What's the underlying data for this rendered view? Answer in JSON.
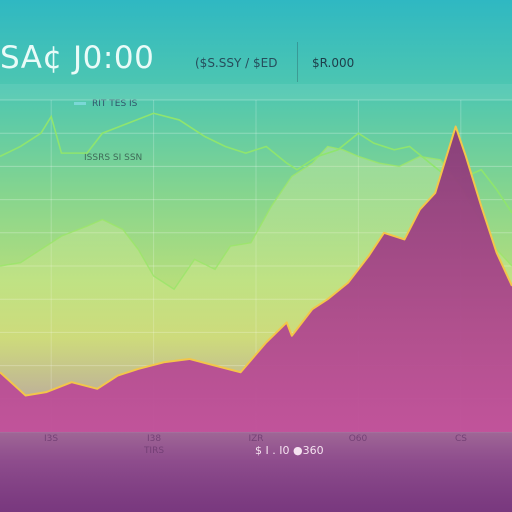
{
  "header": {
    "title": "SA¢ J0:00",
    "left_info": "($S.SSY / $ED",
    "right_info": "$R.000"
  },
  "legend": {
    "label": "RIT TES IS"
  },
  "sublabel": "ISSRS SI SSN",
  "footer": {
    "text": "$ I . I0 ●360"
  },
  "colors": {
    "area_fill": "#a3407f",
    "area_edge": "#f3c64a",
    "secondary_line": "#8fe56e",
    "background_top": "#2fb8c2"
  },
  "chart_data": {
    "type": "area",
    "title": "",
    "xlabel": "",
    "ylabel": "",
    "x_ticks": [
      "I3S",
      "I38",
      "IZR",
      "O60",
      "CS"
    ],
    "x_tick_sublabels": [
      "",
      "TIRS",
      "",
      "",
      ""
    ],
    "x_range": [
      0,
      100
    ],
    "y_range": [
      0,
      100
    ],
    "grid": true,
    "series": [
      {
        "values_xy": [
          [
            0,
            18
          ],
          [
            5,
            11
          ],
          [
            9,
            12
          ],
          [
            14,
            15
          ],
          [
            19,
            13
          ],
          [
            23,
            17
          ],
          [
            27,
            19
          ],
          [
            32,
            21
          ],
          [
            37,
            22
          ],
          [
            42,
            20
          ],
          [
            47,
            18
          ],
          [
            52,
            27
          ],
          [
            56,
            33
          ],
          [
            57,
            29
          ],
          [
            61,
            37
          ],
          [
            64,
            40
          ],
          [
            68,
            45
          ],
          [
            72,
            53
          ],
          [
            75,
            60
          ],
          [
            79,
            58
          ],
          [
            82,
            67
          ],
          [
            85,
            72
          ],
          [
            89,
            92
          ],
          [
            91,
            83
          ],
          [
            94,
            68
          ],
          [
            97,
            54
          ],
          [
            100,
            44
          ]
        ]
      },
      {
        "values_xy": [
          [
            0,
            83
          ],
          [
            4,
            86
          ],
          [
            8,
            90
          ],
          [
            10,
            95
          ],
          [
            12,
            84
          ],
          [
            17,
            84
          ],
          [
            20,
            90
          ],
          [
            25,
            93
          ],
          [
            30,
            96
          ],
          [
            35,
            94
          ],
          [
            40,
            89
          ],
          [
            44,
            86
          ],
          [
            48,
            84
          ],
          [
            52,
            86
          ],
          [
            56,
            81
          ],
          [
            58,
            79
          ],
          [
            62,
            83
          ],
          [
            66,
            85
          ],
          [
            70,
            90
          ],
          [
            73,
            87
          ],
          [
            77,
            85
          ],
          [
            80,
            86
          ],
          [
            84,
            81
          ],
          [
            88,
            76
          ],
          [
            91,
            77
          ],
          [
            94,
            79
          ],
          [
            97,
            73
          ],
          [
            100,
            66
          ]
        ]
      },
      {
        "values_xy": [
          [
            0,
            50
          ],
          [
            4,
            51
          ],
          [
            8,
            55
          ],
          [
            12,
            59
          ],
          [
            17,
            62
          ],
          [
            20,
            64
          ],
          [
            24,
            61
          ],
          [
            27,
            55
          ],
          [
            30,
            47
          ],
          [
            34,
            43
          ],
          [
            38,
            52
          ],
          [
            42,
            49
          ],
          [
            45,
            56
          ],
          [
            49,
            57
          ],
          [
            53,
            68
          ],
          [
            57,
            77
          ],
          [
            61,
            81
          ],
          [
            64,
            86
          ],
          [
            67,
            85
          ],
          [
            70,
            83
          ],
          [
            74,
            81
          ],
          [
            78,
            80
          ],
          [
            82,
            83
          ],
          [
            86,
            82
          ],
          [
            90,
            74
          ],
          [
            94,
            63
          ],
          [
            97,
            55
          ],
          [
            100,
            50
          ]
        ]
      }
    ]
  }
}
